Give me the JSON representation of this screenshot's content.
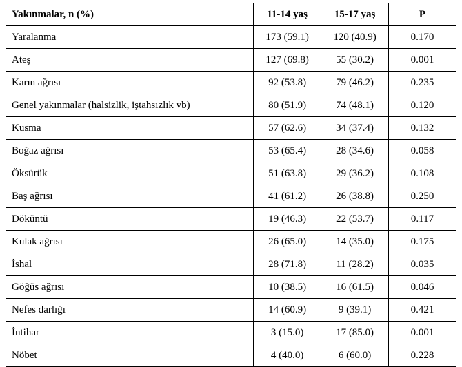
{
  "table": {
    "columns": [
      "Yakınmalar,  n (%)",
      "11-14 yaş",
      "15-17 yaş",
      "P"
    ],
    "rows": [
      [
        "Yaralanma",
        "173 (59.1)",
        "120 (40.9)",
        "0.170"
      ],
      [
        "Ateş",
        "127 (69.8)",
        "55 (30.2)",
        "0.001"
      ],
      [
        "Karın ağrısı",
        "92 (53.8)",
        "79 (46.2)",
        "0.235"
      ],
      [
        "Genel yakınmalar (halsizlik, iştahsızlık vb)",
        "80 (51.9)",
        "74 (48.1)",
        "0.120"
      ],
      [
        "Kusma",
        "57 (62.6)",
        "34 (37.4)",
        "0.132"
      ],
      [
        "Boğaz ağrısı",
        "53 (65.4)",
        "28 (34.6)",
        "0.058"
      ],
      [
        "Öksürük",
        "51 (63.8)",
        "29 (36.2)",
        "0.108"
      ],
      [
        "Baş ağrısı",
        "41 (61.2)",
        "26 (38.8)",
        "0.250"
      ],
      [
        "Döküntü",
        "19 (46.3)",
        "22 (53.7)",
        "0.117"
      ],
      [
        "Kulak ağrısı",
        "26 (65.0)",
        "14 (35.0)",
        "0.175"
      ],
      [
        "İshal",
        "28 (71.8)",
        "11 (28.2)",
        "0.035"
      ],
      [
        "Göğüs ağrısı",
        "10 (38.5)",
        "16 (61.5)",
        "0.046"
      ],
      [
        "Nefes darlığı",
        "14 (60.9)",
        "9 (39.1)",
        "0.421"
      ],
      [
        "İntihar",
        "3 (15.0)",
        "17 (85.0)",
        "0.001"
      ],
      [
        "Nöbet",
        "4 (40.0)",
        "6 (60.0)",
        "0.228"
      ]
    ],
    "border_color": "#000000",
    "background_color": "#ffffff",
    "font_family": "Times New Roman",
    "header_font_weight": "bold",
    "cell_fontsize": 15,
    "col_widths_pct": [
      55,
      15,
      15,
      15
    ]
  }
}
